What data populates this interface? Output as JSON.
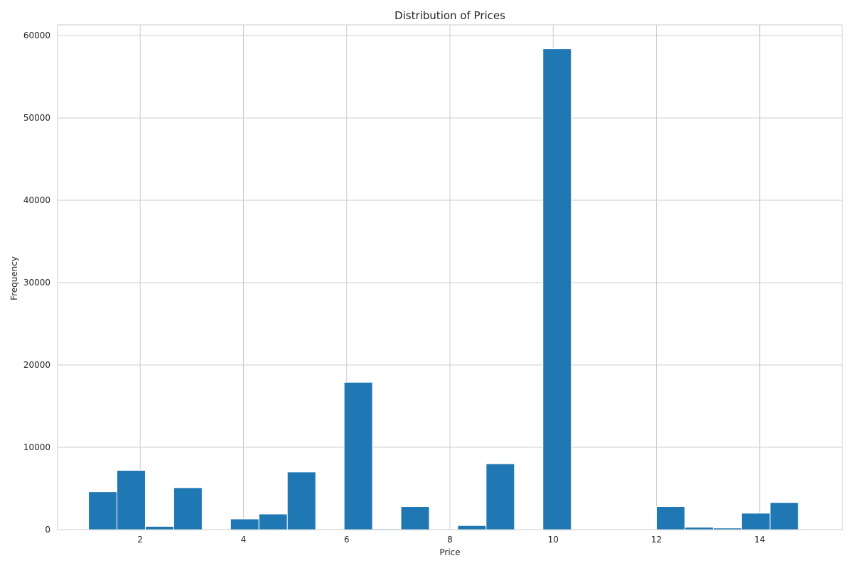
{
  "chart_data": {
    "type": "bar",
    "subtype": "histogram",
    "title": "Distribution of Prices",
    "xlabel": "Price",
    "ylabel": "Frequency",
    "xlim": [
      0.4,
      15.6
    ],
    "ylim": [
      0,
      61300
    ],
    "xticks": [
      2,
      4,
      6,
      8,
      10,
      12,
      14
    ],
    "yticks": [
      0,
      10000,
      20000,
      30000,
      40000,
      50000,
      60000
    ],
    "grid": true,
    "bar_color": "#1f77b4",
    "bin_start": 1.0,
    "bin_width": 0.55,
    "bins": [
      {
        "x0": 1.0,
        "x1": 1.55,
        "value": 4600
      },
      {
        "x0": 1.55,
        "x1": 2.1,
        "value": 7200
      },
      {
        "x0": 2.1,
        "x1": 2.65,
        "value": 400
      },
      {
        "x0": 2.65,
        "x1": 3.2,
        "value": 5100
      },
      {
        "x0": 3.2,
        "x1": 3.75,
        "value": 0
      },
      {
        "x0": 3.75,
        "x1": 4.3,
        "value": 1300
      },
      {
        "x0": 4.3,
        "x1": 4.85,
        "value": 1900
      },
      {
        "x0": 4.85,
        "x1": 5.4,
        "value": 7000
      },
      {
        "x0": 5.4,
        "x1": 5.95,
        "value": 0
      },
      {
        "x0": 5.95,
        "x1": 6.5,
        "value": 17900
      },
      {
        "x0": 6.5,
        "x1": 7.05,
        "value": 100
      },
      {
        "x0": 7.05,
        "x1": 7.6,
        "value": 2800
      },
      {
        "x0": 7.6,
        "x1": 8.15,
        "value": 0
      },
      {
        "x0": 8.15,
        "x1": 8.7,
        "value": 500
      },
      {
        "x0": 8.7,
        "x1": 9.25,
        "value": 8000
      },
      {
        "x0": 9.25,
        "x1": 9.8,
        "value": 0
      },
      {
        "x0": 9.8,
        "x1": 10.35,
        "value": 58400
      },
      {
        "x0": 10.35,
        "x1": 10.9,
        "value": 0
      },
      {
        "x0": 10.9,
        "x1": 11.45,
        "value": 0
      },
      {
        "x0": 11.45,
        "x1": 12.0,
        "value": 0
      },
      {
        "x0": 12.0,
        "x1": 12.55,
        "value": 2800
      },
      {
        "x0": 12.55,
        "x1": 13.1,
        "value": 300
      },
      {
        "x0": 13.1,
        "x1": 13.65,
        "value": 200
      },
      {
        "x0": 13.65,
        "x1": 14.2,
        "value": 2000
      },
      {
        "x0": 14.2,
        "x1": 14.75,
        "value": 3300
      }
    ]
  }
}
